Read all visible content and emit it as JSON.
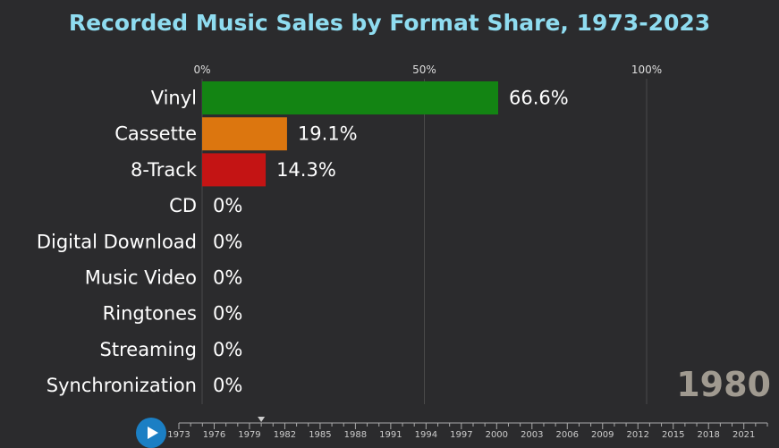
{
  "chart_data": {
    "type": "bar",
    "title": "Recorded Music Sales by Format Share, 1973-2023",
    "orientation": "horizontal",
    "categories": [
      "Vinyl",
      "Cassette",
      "8-Track",
      "CD",
      "Digital Download",
      "Music Video",
      "Ringtones",
      "Streaming",
      "Synchronization"
    ],
    "values": [
      66.6,
      19.1,
      14.3,
      0,
      0,
      0,
      0,
      0,
      0
    ],
    "value_labels": [
      "66.6%",
      "19.1%",
      "14.3%",
      "0%",
      "0%",
      "0%",
      "0%",
      "0%",
      "0%"
    ],
    "colors": [
      "#138413",
      "#dc760f",
      "#c41414",
      "#2e8b57",
      "#1f77b4",
      "#9467bd",
      "#e377c2",
      "#17becf",
      "#bcbd22"
    ],
    "xlim": [
      0,
      100
    ],
    "x_ticks": [
      0,
      50,
      100
    ],
    "x_tick_labels": [
      "0%",
      "50%",
      "100%"
    ],
    "grid": true,
    "current_year": "1980"
  },
  "timeline": {
    "start": 1973,
    "end": 2023,
    "current": 1980,
    "tick_labels": [
      "1973",
      "1976",
      "1979",
      "1982",
      "1985",
      "1988",
      "1991",
      "1994",
      "1997",
      "2000",
      "2003",
      "2006",
      "2009",
      "2012",
      "2015",
      "2018",
      "2021"
    ]
  },
  "controls": {
    "play_icon": "play-icon"
  },
  "theme": {
    "background": "#2b2b2d",
    "title_color": "#8fdcf0",
    "text_color": "#ffffff",
    "grid_color": "#4a4a4a",
    "year_color": "#a09a90",
    "play_button_color": "#1b7fc4"
  }
}
